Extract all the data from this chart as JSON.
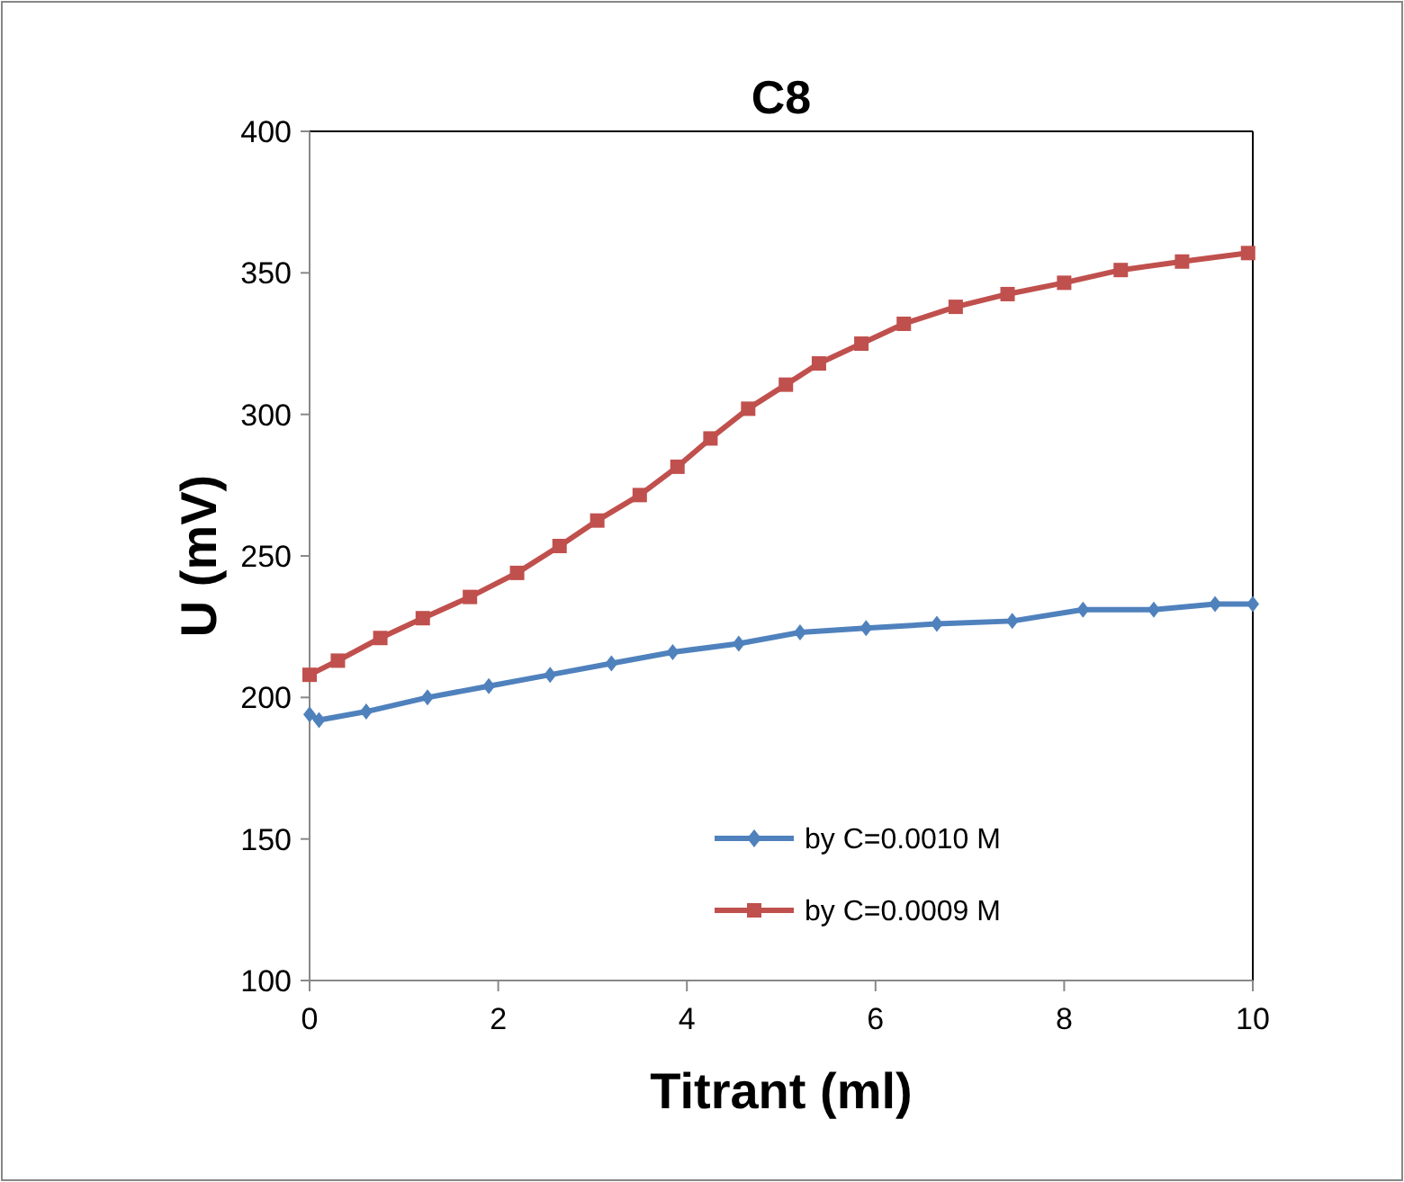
{
  "chart_data": {
    "type": "line",
    "title": "C8",
    "xlabel": "Titrant (ml)",
    "ylabel": "U (mV)",
    "xlim": [
      0,
      10
    ],
    "xticks": [
      0,
      2,
      4,
      6,
      8,
      10
    ],
    "ylim": [
      100,
      400
    ],
    "yticks": [
      100,
      150,
      200,
      250,
      300,
      350,
      400
    ],
    "grid": false,
    "legend": "bottom right",
    "line_style": "solid",
    "series": [
      {
        "name": "by C=0.0010 M",
        "color": "#4f81bd",
        "marker": "diamond",
        "x": [
          0,
          0.1,
          0.6,
          1.25,
          1.9,
          2.55,
          3.2,
          3.85,
          4.55,
          5.2,
          5.9,
          6.65,
          7.45,
          8.2,
          8.95,
          9.6,
          10
        ],
        "values": [
          194,
          192,
          195,
          200,
          204,
          208,
          212,
          216,
          219,
          223,
          224.5,
          226,
          227,
          231,
          231,
          233,
          233
        ]
      },
      {
        "name": "by C=0.0009 M",
        "color": "#c0504d",
        "marker": "square",
        "x": [
          0,
          0.3,
          0.75,
          1.2,
          1.7,
          2.2,
          2.65,
          3.05,
          3.5,
          3.9,
          4.25,
          4.65,
          5.05,
          5.4,
          5.85,
          6.3,
          6.85,
          7.4,
          8,
          8.6,
          9.25,
          9.95
        ],
        "values": [
          208,
          213,
          221,
          228,
          235.5,
          244,
          253.5,
          262.5,
          271.5,
          281.5,
          291.5,
          302,
          310.5,
          318,
          325,
          332,
          338,
          342.5,
          346.5,
          351,
          354,
          357
        ]
      }
    ]
  }
}
